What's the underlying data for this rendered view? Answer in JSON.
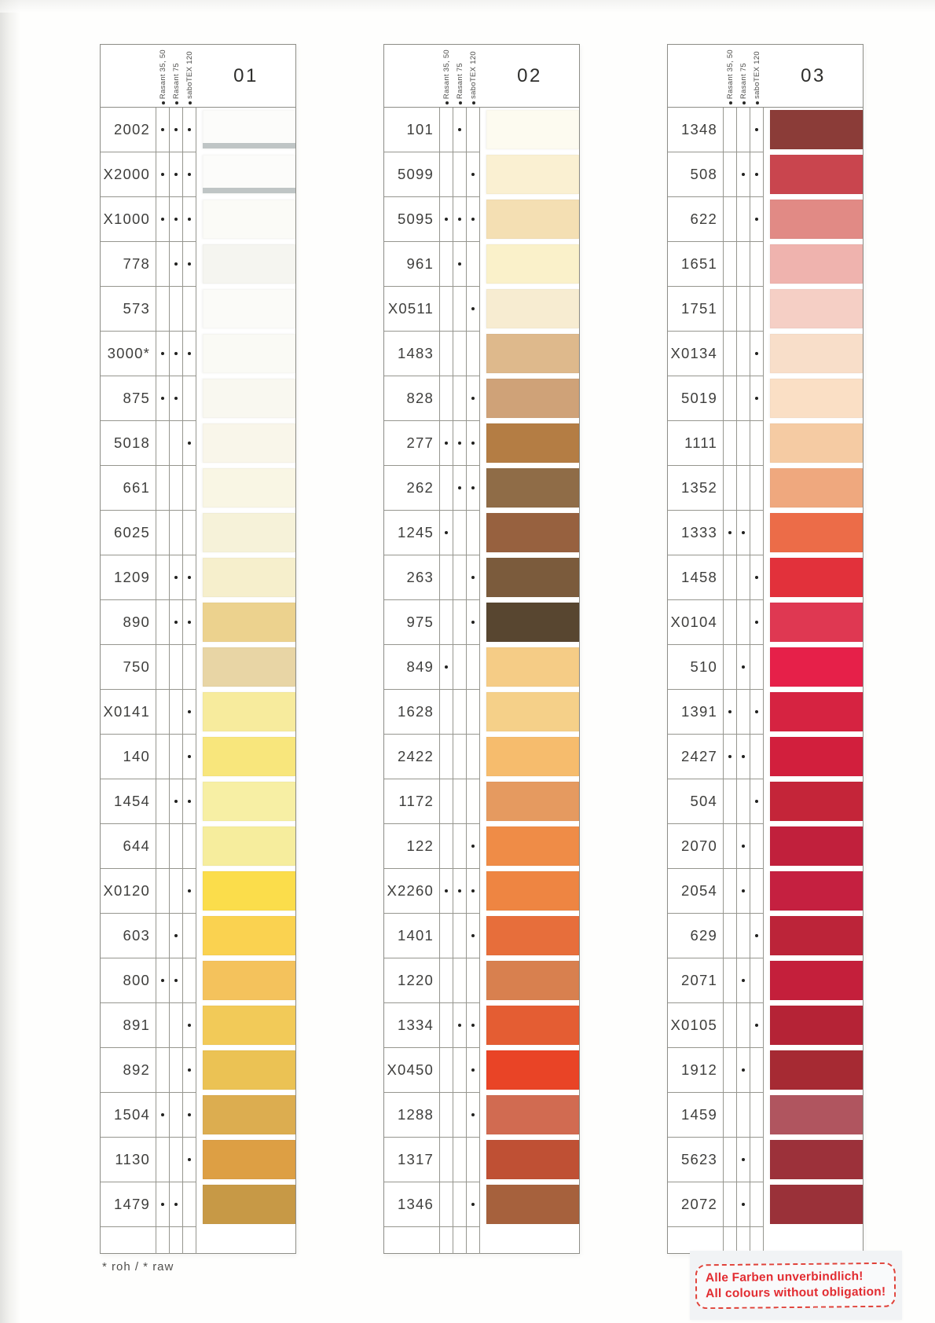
{
  "page": {
    "footnote": "* roh / * raw",
    "stamp": {
      "line1": "Alle Farben unverbindlich!",
      "line2": "All colours without obligation!",
      "color": "#e22c31"
    }
  },
  "legend": [
    "Rasant 35, 50",
    "Rasant 75",
    "saboTEX 120"
  ],
  "cards": [
    {
      "number": "01",
      "rows": [
        {
          "code": "2002",
          "dots": [
            1,
            1,
            1
          ],
          "color": "#fcfcfa",
          "stripe": true
        },
        {
          "code": "X2000",
          "dots": [
            1,
            1,
            1
          ],
          "color": "#fcfcfa",
          "stripe": true
        },
        {
          "code": "X1000",
          "dots": [
            1,
            1,
            1
          ],
          "color": "#fbfbf7"
        },
        {
          "code": "778",
          "dots": [
            0,
            1,
            1
          ],
          "color": "#f5f5f0"
        },
        {
          "code": "573",
          "dots": [
            0,
            0,
            0
          ],
          "color": "#fbfbf8"
        },
        {
          "code": "3000*",
          "dots": [
            1,
            1,
            1
          ],
          "color": "#fafaf5"
        },
        {
          "code": "875",
          "dots": [
            1,
            1,
            0
          ],
          "color": "#f9f8f0"
        },
        {
          "code": "5018",
          "dots": [
            0,
            0,
            1
          ],
          "color": "#f9f6ea"
        },
        {
          "code": "661",
          "dots": [
            0,
            0,
            0
          ],
          "color": "#f9f6e4"
        },
        {
          "code": "6025",
          "dots": [
            0,
            0,
            0
          ],
          "color": "#f6f2d9"
        },
        {
          "code": "1209",
          "dots": [
            0,
            1,
            1
          ],
          "color": "#f6efcc"
        },
        {
          "code": "890",
          "dots": [
            0,
            1,
            1
          ],
          "color": "#ecd28e"
        },
        {
          "code": "750",
          "dots": [
            0,
            0,
            0
          ],
          "color": "#e8d5a5"
        },
        {
          "code": "X0141",
          "dots": [
            0,
            0,
            1
          ],
          "color": "#f7eb9d"
        },
        {
          "code": "140",
          "dots": [
            0,
            0,
            1
          ],
          "color": "#f8e67c"
        },
        {
          "code": "1454",
          "dots": [
            0,
            1,
            1
          ],
          "color": "#f7efa4"
        },
        {
          "code": "644",
          "dots": [
            0,
            0,
            0
          ],
          "color": "#f6ed9d"
        },
        {
          "code": "X0120",
          "dots": [
            0,
            0,
            1
          ],
          "color": "#fbdd4b"
        },
        {
          "code": "603",
          "dots": [
            0,
            1,
            0
          ],
          "color": "#fad250"
        },
        {
          "code": "800",
          "dots": [
            1,
            1,
            0
          ],
          "color": "#f4c25c"
        },
        {
          "code": "891",
          "dots": [
            0,
            0,
            1
          ],
          "color": "#f2ca58"
        },
        {
          "code": "892",
          "dots": [
            0,
            0,
            1
          ],
          "color": "#ebc254"
        },
        {
          "code": "1504",
          "dots": [
            1,
            0,
            1
          ],
          "color": "#dcad50"
        },
        {
          "code": "1130",
          "dots": [
            0,
            0,
            1
          ],
          "color": "#dd9f44"
        },
        {
          "code": "1479",
          "dots": [
            1,
            1,
            0
          ],
          "color": "#c79946"
        }
      ]
    },
    {
      "number": "02",
      "rows": [
        {
          "code": "101",
          "dots": [
            0,
            1,
            0
          ],
          "color": "#fdfbf0"
        },
        {
          "code": "5099",
          "dots": [
            0,
            0,
            1
          ],
          "color": "#faf0d2"
        },
        {
          "code": "5095",
          "dots": [
            1,
            1,
            1
          ],
          "color": "#f4dfb3"
        },
        {
          "code": "961",
          "dots": [
            0,
            1,
            0
          ],
          "color": "#faf1ca"
        },
        {
          "code": "X0511",
          "dots": [
            0,
            0,
            1
          ],
          "color": "#f7ecd1"
        },
        {
          "code": "1483",
          "dots": [
            0,
            0,
            0
          ],
          "color": "#deb98c"
        },
        {
          "code": "828",
          "dots": [
            0,
            0,
            1
          ],
          "color": "#cfa278"
        },
        {
          "code": "277",
          "dots": [
            1,
            1,
            1
          ],
          "color": "#b47d44"
        },
        {
          "code": "262",
          "dots": [
            0,
            1,
            1
          ],
          "color": "#8f6c47"
        },
        {
          "code": "1245",
          "dots": [
            1,
            0,
            0
          ],
          "color": "#97613f"
        },
        {
          "code": "263",
          "dots": [
            0,
            0,
            1
          ],
          "color": "#7b5b3c"
        },
        {
          "code": "975",
          "dots": [
            0,
            0,
            1
          ],
          "color": "#584630"
        },
        {
          "code": "849",
          "dots": [
            1,
            0,
            0
          ],
          "color": "#f5cc86"
        },
        {
          "code": "1628",
          "dots": [
            0,
            0,
            0
          ],
          "color": "#f5d089"
        },
        {
          "code": "2422",
          "dots": [
            0,
            0,
            0
          ],
          "color": "#f6bc6d"
        },
        {
          "code": "1172",
          "dots": [
            0,
            0,
            0
          ],
          "color": "#e59a60"
        },
        {
          "code": "122",
          "dots": [
            0,
            0,
            1
          ],
          "color": "#ef8c47"
        },
        {
          "code": "X2260",
          "dots": [
            1,
            1,
            1
          ],
          "color": "#ee8542"
        },
        {
          "code": "1401",
          "dots": [
            0,
            0,
            1
          ],
          "color": "#e76e3b"
        },
        {
          "code": "1220",
          "dots": [
            0,
            0,
            0
          ],
          "color": "#d8804f"
        },
        {
          "code": "1334",
          "dots": [
            0,
            1,
            1
          ],
          "color": "#e45d33"
        },
        {
          "code": "X0450",
          "dots": [
            0,
            0,
            1
          ],
          "color": "#e94426"
        },
        {
          "code": "1288",
          "dots": [
            0,
            0,
            1
          ],
          "color": "#d16b51"
        },
        {
          "code": "1317",
          "dots": [
            0,
            0,
            0
          ],
          "color": "#bf5034"
        },
        {
          "code": "1346",
          "dots": [
            0,
            0,
            1
          ],
          "color": "#a6613d"
        }
      ]
    },
    {
      "number": "03",
      "rows": [
        {
          "code": "1348",
          "dots": [
            0,
            0,
            1
          ],
          "color": "#8b3c38"
        },
        {
          "code": "508",
          "dots": [
            0,
            1,
            1
          ],
          "color": "#c9454e"
        },
        {
          "code": "622",
          "dots": [
            0,
            0,
            1
          ],
          "color": "#e18a85"
        },
        {
          "code": "1651",
          "dots": [
            0,
            0,
            0
          ],
          "color": "#efb3ae"
        },
        {
          "code": "1751",
          "dots": [
            0,
            0,
            0
          ],
          "color": "#f5cfc5"
        },
        {
          "code": "X0134",
          "dots": [
            0,
            0,
            1
          ],
          "color": "#f8dec9"
        },
        {
          "code": "5019",
          "dots": [
            0,
            0,
            1
          ],
          "color": "#fadfc5"
        },
        {
          "code": "1111",
          "dots": [
            0,
            0,
            0
          ],
          "color": "#f5cba3"
        },
        {
          "code": "1352",
          "dots": [
            0,
            0,
            0
          ],
          "color": "#efa87e"
        },
        {
          "code": "1333",
          "dots": [
            1,
            1,
            0
          ],
          "color": "#ec6c48"
        },
        {
          "code": "1458",
          "dots": [
            0,
            0,
            1
          ],
          "color": "#e2313b"
        },
        {
          "code": "X0104",
          "dots": [
            0,
            0,
            1
          ],
          "color": "#df3852"
        },
        {
          "code": "510",
          "dots": [
            0,
            1,
            0
          ],
          "color": "#e62049"
        },
        {
          "code": "1391",
          "dots": [
            1,
            0,
            1
          ],
          "color": "#d62341"
        },
        {
          "code": "2427",
          "dots": [
            1,
            1,
            0
          ],
          "color": "#d21f3d"
        },
        {
          "code": "504",
          "dots": [
            0,
            0,
            1
          ],
          "color": "#c42539"
        },
        {
          "code": "2070",
          "dots": [
            0,
            1,
            0
          ],
          "color": "#c1203c"
        },
        {
          "code": "2054",
          "dots": [
            0,
            1,
            0
          ],
          "color": "#c52040"
        },
        {
          "code": "629",
          "dots": [
            0,
            0,
            1
          ],
          "color": "#bc2439"
        },
        {
          "code": "2071",
          "dots": [
            0,
            1,
            0
          ],
          "color": "#c41f3b"
        },
        {
          "code": "X0105",
          "dots": [
            0,
            0,
            1
          ],
          "color": "#b52336"
        },
        {
          "code": "1912",
          "dots": [
            0,
            1,
            0
          ],
          "color": "#a62a33"
        },
        {
          "code": "1459",
          "dots": [
            0,
            0,
            0
          ],
          "color": "#b0555f"
        },
        {
          "code": "5623",
          "dots": [
            0,
            1,
            0
          ],
          "color": "#9c313a"
        },
        {
          "code": "2072",
          "dots": [
            0,
            1,
            0
          ],
          "color": "#9a3139"
        }
      ]
    }
  ]
}
